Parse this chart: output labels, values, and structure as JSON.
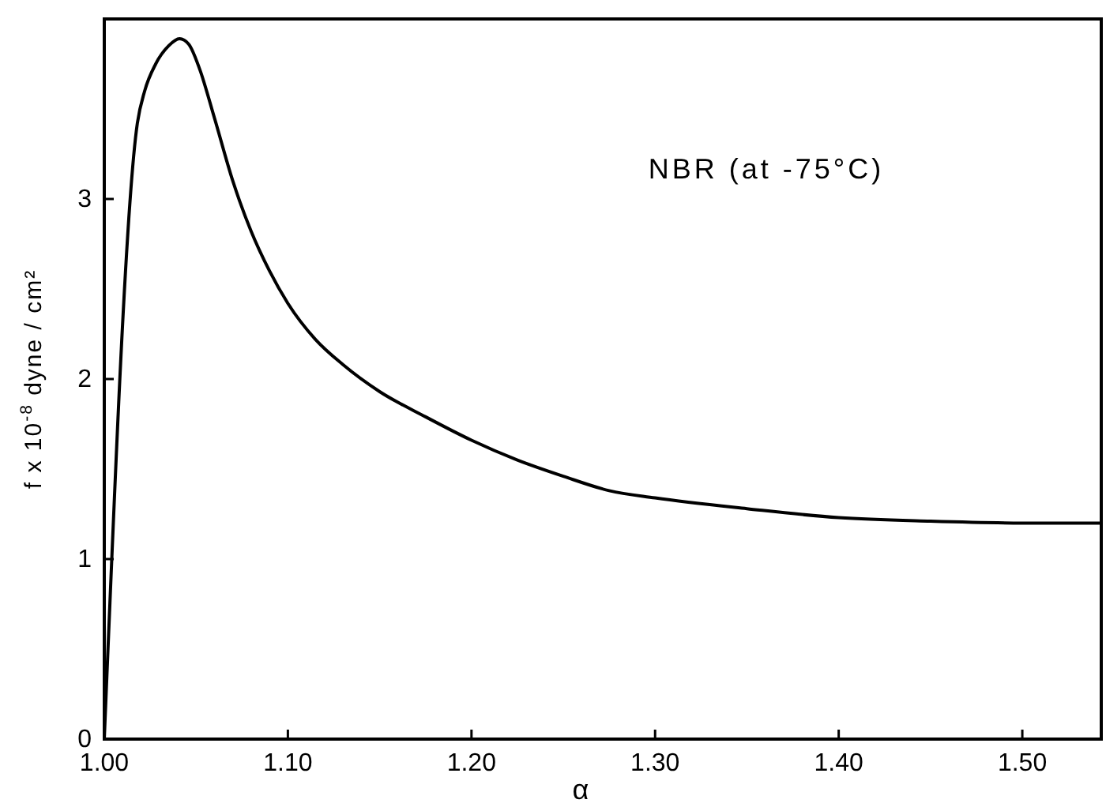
{
  "chart_data": {
    "type": "line",
    "xlabel": "α",
    "ylabel": "f x 10$^{-8}$ dyne / cm²",
    "annotations": [
      "NBR (at -75°C)"
    ],
    "xlim": [
      1.0,
      1.543
    ],
    "ylim": [
      0,
      4.0
    ],
    "xticks": [
      {
        "value": 1.0,
        "label": "1.00"
      },
      {
        "value": 1.1,
        "label": "1.10"
      },
      {
        "value": 1.2,
        "label": "1.20"
      },
      {
        "value": 1.3,
        "label": "1.30"
      },
      {
        "value": 1.4,
        "label": "1.40"
      },
      {
        "value": 1.5,
        "label": "1.50"
      }
    ],
    "yticks": [
      0,
      1,
      2,
      3
    ],
    "series": [
      {
        "color": "#000000",
        "x": [
          1.0,
          1.018,
          1.022,
          1.028,
          1.035,
          1.041,
          1.046,
          1.052,
          1.06,
          1.07,
          1.08,
          1.09,
          1.1,
          1.115,
          1.13,
          1.15,
          1.175,
          1.2,
          1.225,
          1.25,
          1.275,
          1.3,
          1.35,
          1.4,
          1.45,
          1.5,
          1.543
        ],
        "values": [
          0,
          3.42,
          3.6,
          3.75,
          3.85,
          3.89,
          3.86,
          3.72,
          3.45,
          3.1,
          2.82,
          2.6,
          2.42,
          2.22,
          2.08,
          1.93,
          1.79,
          1.66,
          1.55,
          1.46,
          1.38,
          1.34,
          1.28,
          1.23,
          1.21,
          1.2,
          1.2
        ]
      }
    ]
  }
}
